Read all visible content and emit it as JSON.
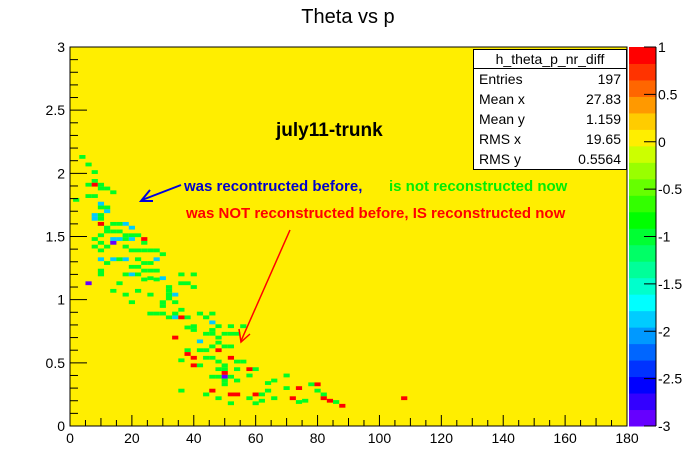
{
  "chart_data": {
    "type": "heatmap",
    "title": "Theta vs p",
    "xlabel": "",
    "ylabel": "",
    "xlim": [
      0,
      180
    ],
    "ylim": [
      0,
      3
    ],
    "x_ticks": [
      "0",
      "20",
      "40",
      "60",
      "80",
      "100",
      "120",
      "140",
      "160",
      "180"
    ],
    "x_tick_values": [
      0,
      20,
      40,
      60,
      80,
      100,
      120,
      140,
      160,
      180
    ],
    "y_ticks": [
      "0",
      "0.5",
      "1",
      "1.5",
      "2",
      "2.5",
      "3"
    ],
    "y_tick_values": [
      0,
      0.5,
      1,
      1.5,
      2,
      2.5,
      3
    ],
    "zlim": [
      -3,
      1
    ],
    "z_ticks": [
      "1",
      "0.5",
      "0",
      "-0.5",
      "-1",
      "-1.5",
      "-2",
      "-2.5",
      "-3"
    ],
    "z_tick_values": [
      1,
      0.5,
      0,
      -0.5,
      -1,
      -1.5,
      -2,
      -2.5,
      -3
    ],
    "palette": [
      "#6600ff",
      "#3300ff",
      "#0000ff",
      "#0033ff",
      "#0066ff",
      "#0099ff",
      "#00ccff",
      "#00ffff",
      "#00ffcc",
      "#00ff99",
      "#00ff66",
      "#00ff33",
      "#00ff00",
      "#33ff00",
      "#66ff00",
      "#99ff00",
      "#ccff00",
      "#ffee00",
      "#ffcc00",
      "#ff9900",
      "#ff6600",
      "#ff3300",
      "#ff0000"
    ],
    "background_value": 0,
    "bin_width": 2,
    "bin_height": 0.03,
    "cells": [
      [
        4,
        2.13,
        -1
      ],
      [
        6,
        2.07,
        -1
      ],
      [
        8,
        2.01,
        -1
      ],
      [
        8,
        1.94,
        -1
      ],
      [
        6,
        1.91,
        -1
      ],
      [
        8,
        1.91,
        3
      ],
      [
        10,
        1.91,
        -1
      ],
      [
        10,
        1.88,
        -1
      ],
      [
        12,
        1.88,
        -1
      ],
      [
        6,
        1.82,
        -1
      ],
      [
        8,
        1.82,
        -1
      ],
      [
        14,
        1.85,
        -1
      ],
      [
        2,
        1.79,
        -1
      ],
      [
        10,
        1.73,
        -1
      ],
      [
        12,
        1.73,
        -1
      ],
      [
        10,
        1.76,
        -2
      ],
      [
        12,
        1.7,
        -2
      ],
      [
        8,
        1.67,
        -2
      ],
      [
        10,
        1.67,
        -1
      ],
      [
        8,
        1.64,
        -2
      ],
      [
        10,
        1.64,
        -1
      ],
      [
        12,
        1.57,
        -1
      ],
      [
        10,
        1.6,
        -1
      ],
      [
        14,
        1.6,
        -1
      ],
      [
        16,
        1.6,
        -1
      ],
      [
        18,
        1.6,
        -2
      ],
      [
        10,
        1.6,
        1
      ],
      [
        20,
        1.57,
        -2
      ],
      [
        12,
        1.54,
        -1
      ],
      [
        14,
        1.54,
        -1
      ],
      [
        16,
        1.54,
        -1
      ],
      [
        18,
        1.51,
        -1
      ],
      [
        20,
        1.51,
        -1
      ],
      [
        22,
        1.51,
        -1
      ],
      [
        24,
        1.48,
        1
      ],
      [
        10,
        1.51,
        -1
      ],
      [
        8,
        1.48,
        -1
      ],
      [
        14,
        1.48,
        -2
      ],
      [
        16,
        1.48,
        -2
      ],
      [
        18,
        1.48,
        -1
      ],
      [
        20,
        1.48,
        -2
      ],
      [
        14,
        1.45,
        -3
      ],
      [
        10,
        1.45,
        -1
      ],
      [
        12,
        1.42,
        -1
      ],
      [
        24,
        1.45,
        -1
      ],
      [
        8,
        1.42,
        -1
      ],
      [
        10,
        1.39,
        -1
      ],
      [
        18,
        1.42,
        -1
      ],
      [
        20,
        1.39,
        -1
      ],
      [
        22,
        1.39,
        -1
      ],
      [
        24,
        1.39,
        -1
      ],
      [
        26,
        1.39,
        -1
      ],
      [
        28,
        1.39,
        -1
      ],
      [
        30,
        1.36,
        -1
      ],
      [
        10,
        1.32,
        -2
      ],
      [
        14,
        1.32,
        -2
      ],
      [
        16,
        1.32,
        -1
      ],
      [
        18,
        1.32,
        -2
      ],
      [
        22,
        1.32,
        -1
      ],
      [
        24,
        1.29,
        -1
      ],
      [
        26,
        1.29,
        -1
      ],
      [
        28,
        1.32,
        -2
      ],
      [
        12,
        1.29,
        -1
      ],
      [
        20,
        1.26,
        -1
      ],
      [
        22,
        1.26,
        -1
      ],
      [
        24,
        1.23,
        -1
      ],
      [
        26,
        1.23,
        -1
      ],
      [
        28,
        1.23,
        -1
      ],
      [
        10,
        1.23,
        -1
      ],
      [
        10,
        1.2,
        -1
      ],
      [
        18,
        1.2,
        -1
      ],
      [
        20,
        1.2,
        -2
      ],
      [
        22,
        1.2,
        -1
      ],
      [
        26,
        1.17,
        -1
      ],
      [
        30,
        1.17,
        -2
      ],
      [
        36,
        1.2,
        -1
      ],
      [
        40,
        1.2,
        -1
      ],
      [
        6,
        1.13,
        -3
      ],
      [
        16,
        1.13,
        -1
      ],
      [
        24,
        1.16,
        -1
      ],
      [
        36,
        1.13,
        -1
      ],
      [
        38,
        1.13,
        -1
      ],
      [
        40,
        1.1,
        -1
      ],
      [
        14,
        1.07,
        -1
      ],
      [
        18,
        1.04,
        -1
      ],
      [
        22,
        1.07,
        -1
      ],
      [
        26,
        1.04,
        -1
      ],
      [
        32,
        1.01,
        -1
      ],
      [
        20,
        0.98,
        -1
      ],
      [
        30,
        0.98,
        -1
      ],
      [
        34,
        0.98,
        -1
      ],
      [
        30,
        0.95,
        -1
      ],
      [
        36,
        0.92,
        -1
      ],
      [
        32,
        1.1,
        -1
      ],
      [
        32,
        1.07,
        -1
      ],
      [
        32,
        1.04,
        -1
      ],
      [
        34,
        1.04,
        -2
      ],
      [
        28,
        1.16,
        -1
      ],
      [
        26,
        0.89,
        -1
      ],
      [
        28,
        0.89,
        -1
      ],
      [
        30,
        0.89,
        -1
      ],
      [
        32,
        0.86,
        -1
      ],
      [
        34,
        0.89,
        -1
      ],
      [
        34,
        0.86,
        -2
      ],
      [
        36,
        0.86,
        1
      ],
      [
        38,
        0.86,
        -1
      ],
      [
        42,
        0.89,
        -1
      ],
      [
        44,
        0.86,
        -1
      ],
      [
        46,
        0.89,
        -1
      ],
      [
        38,
        0.78,
        -1
      ],
      [
        40,
        0.79,
        -1
      ],
      [
        46,
        0.82,
        -2
      ],
      [
        48,
        0.79,
        -1
      ],
      [
        46,
        0.76,
        -1
      ],
      [
        52,
        0.79,
        -1
      ],
      [
        56,
        0.79,
        -1
      ],
      [
        40,
        0.76,
        -1
      ],
      [
        44,
        0.73,
        -1
      ],
      [
        46,
        0.73,
        -1
      ],
      [
        48,
        0.7,
        -1
      ],
      [
        50,
        0.73,
        -1
      ],
      [
        48,
        0.66,
        -1
      ],
      [
        52,
        0.73,
        -1
      ],
      [
        54,
        0.73,
        -1
      ],
      [
        42,
        0.67,
        -2
      ],
      [
        46,
        0.63,
        -1
      ],
      [
        50,
        0.63,
        -1
      ],
      [
        48,
        0.6,
        1
      ],
      [
        52,
        0.63,
        -1
      ],
      [
        38,
        0.6,
        -1
      ],
      [
        42,
        0.6,
        -1
      ],
      [
        44,
        0.6,
        -1
      ],
      [
        40,
        0.54,
        1
      ],
      [
        44,
        0.54,
        -1
      ],
      [
        46,
        0.54,
        -1
      ],
      [
        42,
        0.48,
        -1
      ],
      [
        48,
        0.51,
        -1
      ],
      [
        52,
        0.54,
        1
      ],
      [
        50,
        0.48,
        -1
      ],
      [
        54,
        0.51,
        -1
      ],
      [
        56,
        0.51,
        -1
      ],
      [
        58,
        0.45,
        1
      ],
      [
        60,
        0.45,
        -1
      ],
      [
        48,
        0.45,
        -1
      ],
      [
        50,
        0.45,
        -1
      ],
      [
        54,
        0.45,
        -1
      ],
      [
        34,
        0.7,
        1
      ],
      [
        38,
        0.57,
        1
      ],
      [
        36,
        0.52,
        -1
      ],
      [
        40,
        0.48,
        1
      ],
      [
        50,
        0.42,
        1
      ],
      [
        50,
        0.39,
        -3
      ],
      [
        48,
        0.39,
        -1
      ],
      [
        46,
        0.39,
        -1
      ],
      [
        52,
        0.39,
        -1
      ],
      [
        54,
        0.36,
        -1
      ],
      [
        50,
        0.36,
        -1
      ],
      [
        50,
        0.33,
        -1
      ],
      [
        46,
        0.28,
        1
      ],
      [
        36,
        0.28,
        -1
      ],
      [
        44,
        0.25,
        -1
      ],
      [
        52,
        0.25,
        1
      ],
      [
        54,
        0.25,
        1
      ],
      [
        60,
        0.25,
        1
      ],
      [
        62,
        0.25,
        -1
      ],
      [
        58,
        0.22,
        -1
      ],
      [
        52,
        0.18,
        -1
      ],
      [
        48,
        0.22,
        -1
      ],
      [
        62,
        0.2,
        -1
      ],
      [
        60,
        0.18,
        -1
      ],
      [
        64,
        0.28,
        -1
      ],
      [
        64,
        0.34,
        -1
      ],
      [
        70,
        0.3,
        -1
      ],
      [
        66,
        0.22,
        -1
      ],
      [
        74,
        0.3,
        1
      ],
      [
        72,
        0.22,
        1
      ],
      [
        74,
        0.19,
        -1
      ],
      [
        76,
        0.2,
        -1
      ],
      [
        80,
        0.28,
        -1
      ],
      [
        82,
        0.25,
        -1
      ],
      [
        78,
        0.33,
        -1
      ],
      [
        80,
        0.33,
        1
      ],
      [
        82,
        0.22,
        1
      ],
      [
        86,
        0.19,
        -1
      ],
      [
        84,
        0.2,
        1
      ],
      [
        88,
        0.16,
        1
      ],
      [
        108,
        0.22,
        1
      ],
      [
        70,
        0.4,
        -1
      ],
      [
        66,
        0.36,
        -1
      ],
      [
        58,
        0.4,
        -1
      ]
    ],
    "stats_box": {
      "name": "h_theta_p_nr_diff",
      "Entries": "197",
      "Mean x": "27.83",
      "Mean y": "1.159",
      "RMS x": "19.65",
      "RMS y": "0.5564"
    },
    "annotations": [
      {
        "text": "july11-trunk",
        "color": "#000000"
      },
      {
        "text": "was recontructed before,",
        "color": "#0000cc"
      },
      {
        "text": "is not reconstructed now",
        "color": "#00ee00"
      },
      {
        "text": "was NOT reconstructed before, IS reconstructed now",
        "color": "#ff0000"
      }
    ]
  },
  "colors": {
    "background_fill": "#ffee00",
    "blue_arrow": "#0000dd",
    "red_arrow": "#ff0000"
  }
}
